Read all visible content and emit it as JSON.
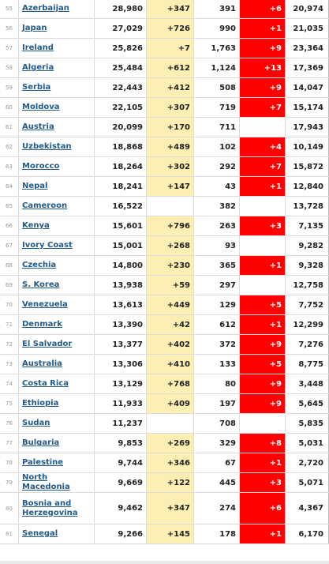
{
  "rows": [
    {
      "rank": "55",
      "country": "Azerbaijan",
      "cases": "28,980",
      "new_cases": "+347",
      "deaths": "391",
      "new_deaths": "+6",
      "recovered": "20,974"
    },
    {
      "rank": "56",
      "country": "Japan",
      "cases": "27,029",
      "new_cases": "+726",
      "deaths": "990",
      "new_deaths": "+1",
      "recovered": "21,035"
    },
    {
      "rank": "57",
      "country": "Ireland",
      "cases": "25,826",
      "new_cases": "+7",
      "deaths": "1,763",
      "new_deaths": "+9",
      "recovered": "23,364"
    },
    {
      "rank": "58",
      "country": "Algeria",
      "cases": "25,484",
      "new_cases": "+612",
      "deaths": "1,124",
      "new_deaths": "+13",
      "recovered": "17,369"
    },
    {
      "rank": "59",
      "country": "Serbia",
      "cases": "22,443",
      "new_cases": "+412",
      "deaths": "508",
      "new_deaths": "+9",
      "recovered": "14,047"
    },
    {
      "rank": "60",
      "country": "Moldova",
      "cases": "22,105",
      "new_cases": "+307",
      "deaths": "719",
      "new_deaths": "+7",
      "recovered": "15,174"
    },
    {
      "rank": "61",
      "country": "Austria",
      "cases": "20,099",
      "new_cases": "+170",
      "deaths": "711",
      "new_deaths": "",
      "recovered": "17,943"
    },
    {
      "rank": "62",
      "country": "Uzbekistan",
      "cases": "18,868",
      "new_cases": "+489",
      "deaths": "102",
      "new_deaths": "+4",
      "recovered": "10,149"
    },
    {
      "rank": "63",
      "country": "Morocco",
      "cases": "18,264",
      "new_cases": "+302",
      "deaths": "292",
      "new_deaths": "+7",
      "recovered": "15,872"
    },
    {
      "rank": "64",
      "country": "Nepal",
      "cases": "18,241",
      "new_cases": "+147",
      "deaths": "43",
      "new_deaths": "+1",
      "recovered": "12,840"
    },
    {
      "rank": "65",
      "country": "Cameroon",
      "cases": "16,522",
      "new_cases": "",
      "deaths": "382",
      "new_deaths": "",
      "recovered": "13,728"
    },
    {
      "rank": "66",
      "country": "Kenya",
      "cases": "15,601",
      "new_cases": "+796",
      "deaths": "263",
      "new_deaths": "+3",
      "recovered": "7,135"
    },
    {
      "rank": "67",
      "country": "Ivory Coast",
      "cases": "15,001",
      "new_cases": "+268",
      "deaths": "93",
      "new_deaths": "",
      "recovered": "9,282"
    },
    {
      "rank": "68",
      "country": "Czechia",
      "cases": "14,800",
      "new_cases": "+230",
      "deaths": "365",
      "new_deaths": "+1",
      "recovered": "9,328"
    },
    {
      "rank": "69",
      "country": "S. Korea",
      "cases": "13,938",
      "new_cases": "+59",
      "deaths": "297",
      "new_deaths": "",
      "recovered": "12,758"
    },
    {
      "rank": "70",
      "country": "Venezuela",
      "cases": "13,613",
      "new_cases": "+449",
      "deaths": "129",
      "new_deaths": "+5",
      "recovered": "7,752"
    },
    {
      "rank": "71",
      "country": "Denmark",
      "cases": "13,390",
      "new_cases": "+42",
      "deaths": "612",
      "new_deaths": "+1",
      "recovered": "12,299"
    },
    {
      "rank": "72",
      "country": "El Salvador",
      "cases": "13,377",
      "new_cases": "+402",
      "deaths": "372",
      "new_deaths": "+9",
      "recovered": "7,276"
    },
    {
      "rank": "73",
      "country": "Australia",
      "cases": "13,306",
      "new_cases": "+410",
      "deaths": "133",
      "new_deaths": "+5",
      "recovered": "8,775"
    },
    {
      "rank": "74",
      "country": "Costa Rica",
      "cases": "13,129",
      "new_cases": "+768",
      "deaths": "80",
      "new_deaths": "+9",
      "recovered": "3,448"
    },
    {
      "rank": "75",
      "country": "Ethiopia",
      "cases": "11,933",
      "new_cases": "+409",
      "deaths": "197",
      "new_deaths": "+9",
      "recovered": "5,645"
    },
    {
      "rank": "76",
      "country": "Sudan",
      "cases": "11,237",
      "new_cases": "",
      "deaths": "708",
      "new_deaths": "",
      "recovered": "5,835"
    },
    {
      "rank": "77",
      "country": "Bulgaria",
      "cases": "9,853",
      "new_cases": "+269",
      "deaths": "329",
      "new_deaths": "+8",
      "recovered": "5,031"
    },
    {
      "rank": "78",
      "country": "Palestine",
      "cases": "9,744",
      "new_cases": "+346",
      "deaths": "67",
      "new_deaths": "+1",
      "recovered": "2,720"
    },
    {
      "rank": "79",
      "country": "North Macedonia",
      "cases": "9,669",
      "new_cases": "+122",
      "deaths": "445",
      "new_deaths": "+3",
      "recovered": "5,071"
    },
    {
      "rank": "80",
      "country": "Bosnia and Herzegovina",
      "cases": "9,462",
      "new_cases": "+347",
      "deaths": "274",
      "new_deaths": "+6",
      "recovered": "4,367"
    },
    {
      "rank": "81",
      "country": "Senegal",
      "cases": "9,266",
      "new_cases": "+145",
      "deaths": "178",
      "new_deaths": "+1",
      "recovered": "6,170"
    }
  ],
  "colors": {
    "new_cases_bg": "#fdeeb4",
    "new_deaths_bg": "#ff0000",
    "link": "#215a89"
  }
}
